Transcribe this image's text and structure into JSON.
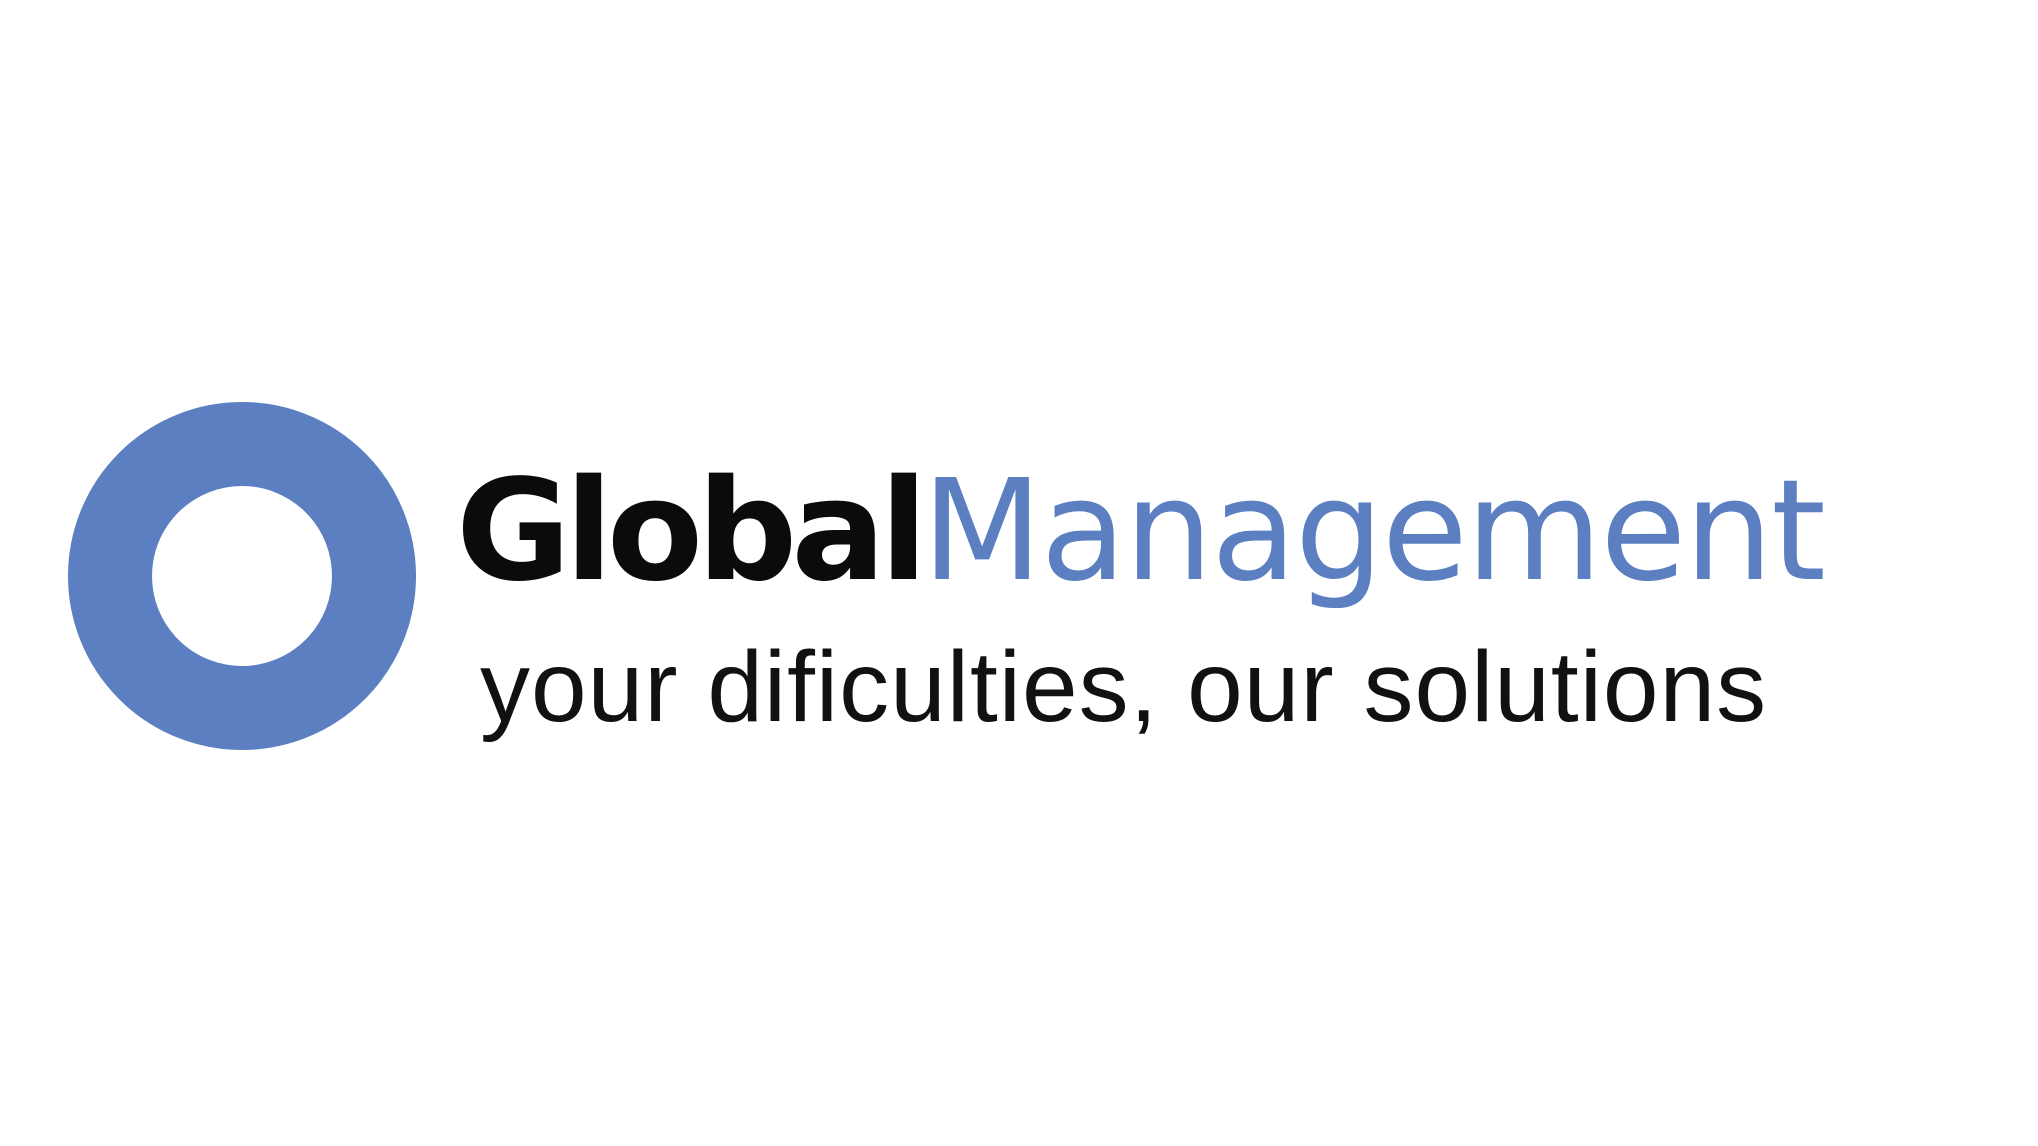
{
  "logo": {
    "brand_first": "Global",
    "brand_second": "Management",
    "tagline": "your dificulties, our solutions",
    "ring_icon": "ring-icon",
    "colors": {
      "accent": "#5b7fc1",
      "text": "#0b0b0b",
      "background": "#ffffff"
    }
  }
}
